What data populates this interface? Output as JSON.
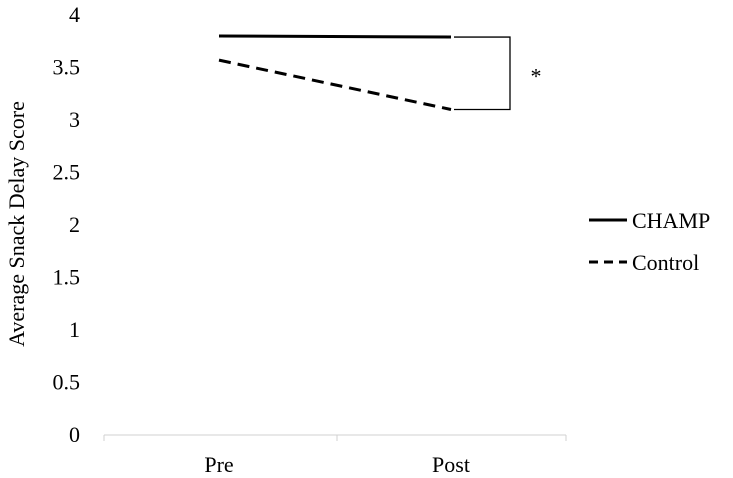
{
  "chart_data": {
    "type": "line",
    "categories": [
      "Pre",
      "Post"
    ],
    "series": [
      {
        "name": "CHAMP",
        "values": [
          3.8,
          3.79
        ],
        "line_style": "solid",
        "color": "#000000"
      },
      {
        "name": "Control",
        "values": [
          3.57,
          3.1
        ],
        "line_style": "dashed",
        "color": "#000000"
      }
    ],
    "xlabel": "",
    "ylabel": "Average Snack Delay Score",
    "ylim": [
      0,
      4
    ],
    "yticks": [
      "0",
      "0.5",
      "1",
      "1.5",
      "2",
      "2.5",
      "3",
      "3.5",
      "4"
    ],
    "grid": false,
    "legend_position": "right",
    "annotations": [
      {
        "text": "*",
        "between_series": [
          "CHAMP",
          "Control"
        ],
        "at_category": "Post"
      }
    ]
  }
}
